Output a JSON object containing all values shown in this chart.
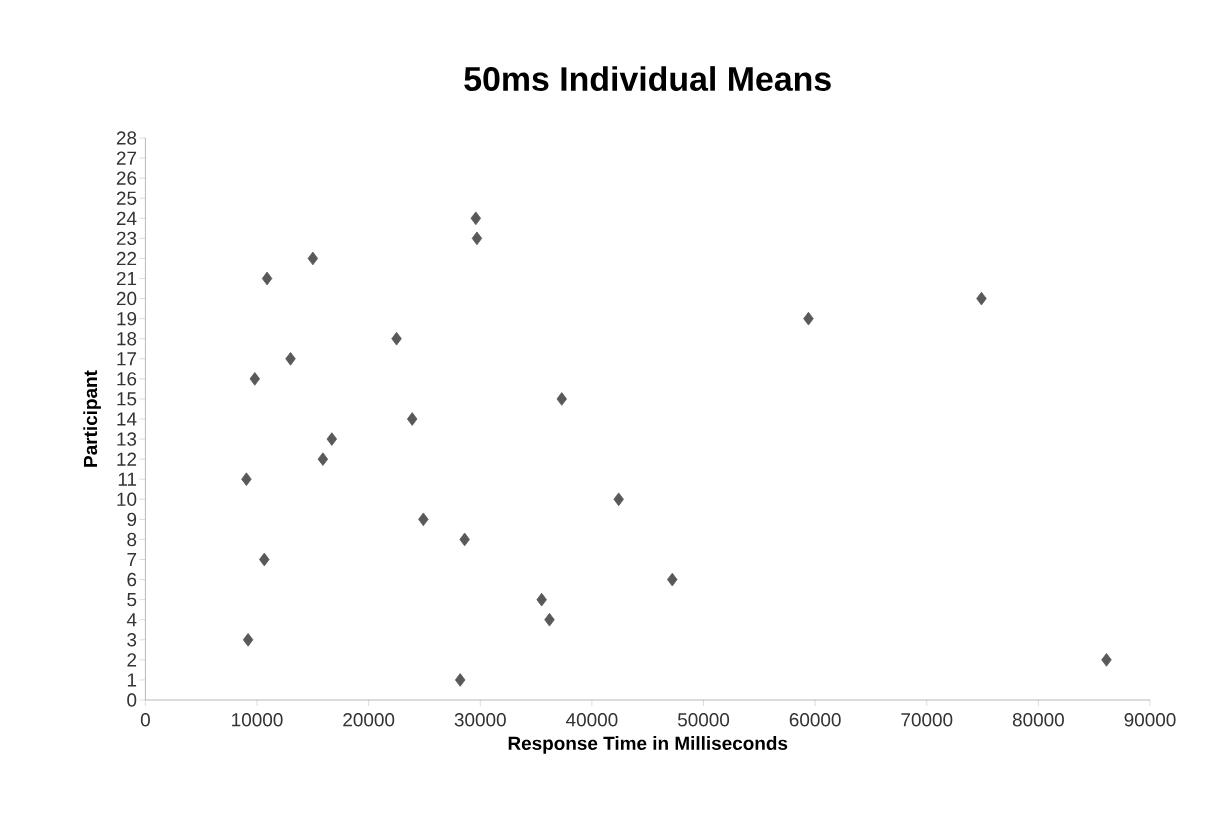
{
  "chart_data": {
    "type": "scatter",
    "title": "50ms Individual Means",
    "xlabel": "Response Time in Milliseconds",
    "ylabel": "Participant",
    "x": [
      28200,
      86100,
      9200,
      36200,
      35500,
      47200,
      10650,
      28600,
      24900,
      42400,
      9050,
      15900,
      16700,
      23900,
      37300,
      9800,
      13000,
      22500,
      59400,
      74900,
      10900,
      15000,
      29700,
      29600
    ],
    "values": [
      1,
      2,
      3,
      4,
      5,
      6,
      7,
      8,
      9,
      10,
      11,
      12,
      13,
      14,
      15,
      16,
      17,
      18,
      19,
      20,
      21,
      22,
      23,
      24
    ],
    "color": "#595959",
    "marker": "diamond",
    "grid": false,
    "xlim": [
      0,
      90000
    ],
    "xticks": [
      0,
      10000,
      20000,
      30000,
      40000,
      50000,
      60000,
      70000,
      80000,
      90000
    ],
    "ylim": [
      0,
      28
    ],
    "yticks": [
      0,
      1,
      2,
      3,
      4,
      5,
      6,
      7,
      8,
      9,
      10,
      11,
      12,
      13,
      14,
      15,
      16,
      17,
      18,
      19,
      20,
      21,
      22,
      23,
      24,
      25,
      26,
      27,
      28
    ]
  }
}
